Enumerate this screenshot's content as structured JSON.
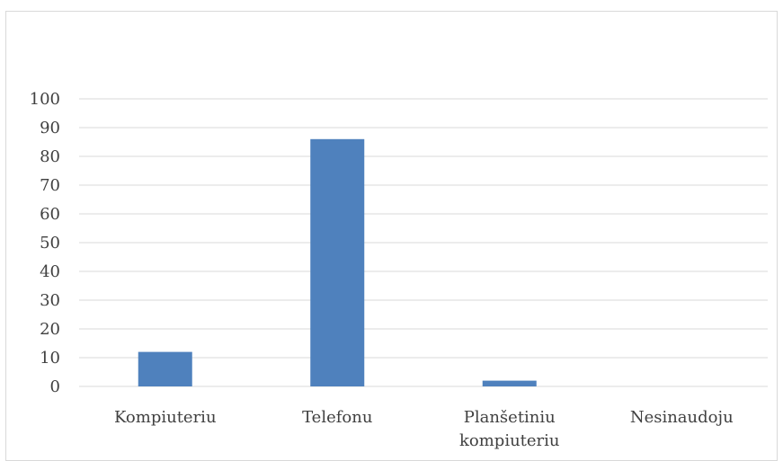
{
  "chart_data": {
    "type": "bar",
    "categories": [
      [
        "Kompiuteriu"
      ],
      [
        "Telefonu"
      ],
      [
        "Planšetiniu",
        "kompiuteriu"
      ],
      [
        "Nesinaudoju"
      ]
    ],
    "values": [
      12,
      86,
      2,
      0
    ],
    "ylim": [
      0,
      100
    ],
    "yticks": [
      0,
      10,
      20,
      30,
      40,
      50,
      60,
      70,
      80,
      90,
      100
    ],
    "grid": true,
    "legend": "none",
    "bar_color": "#4f81bd",
    "grid_color": "#d9d9d9",
    "frame_color": "#d9d9d9"
  }
}
